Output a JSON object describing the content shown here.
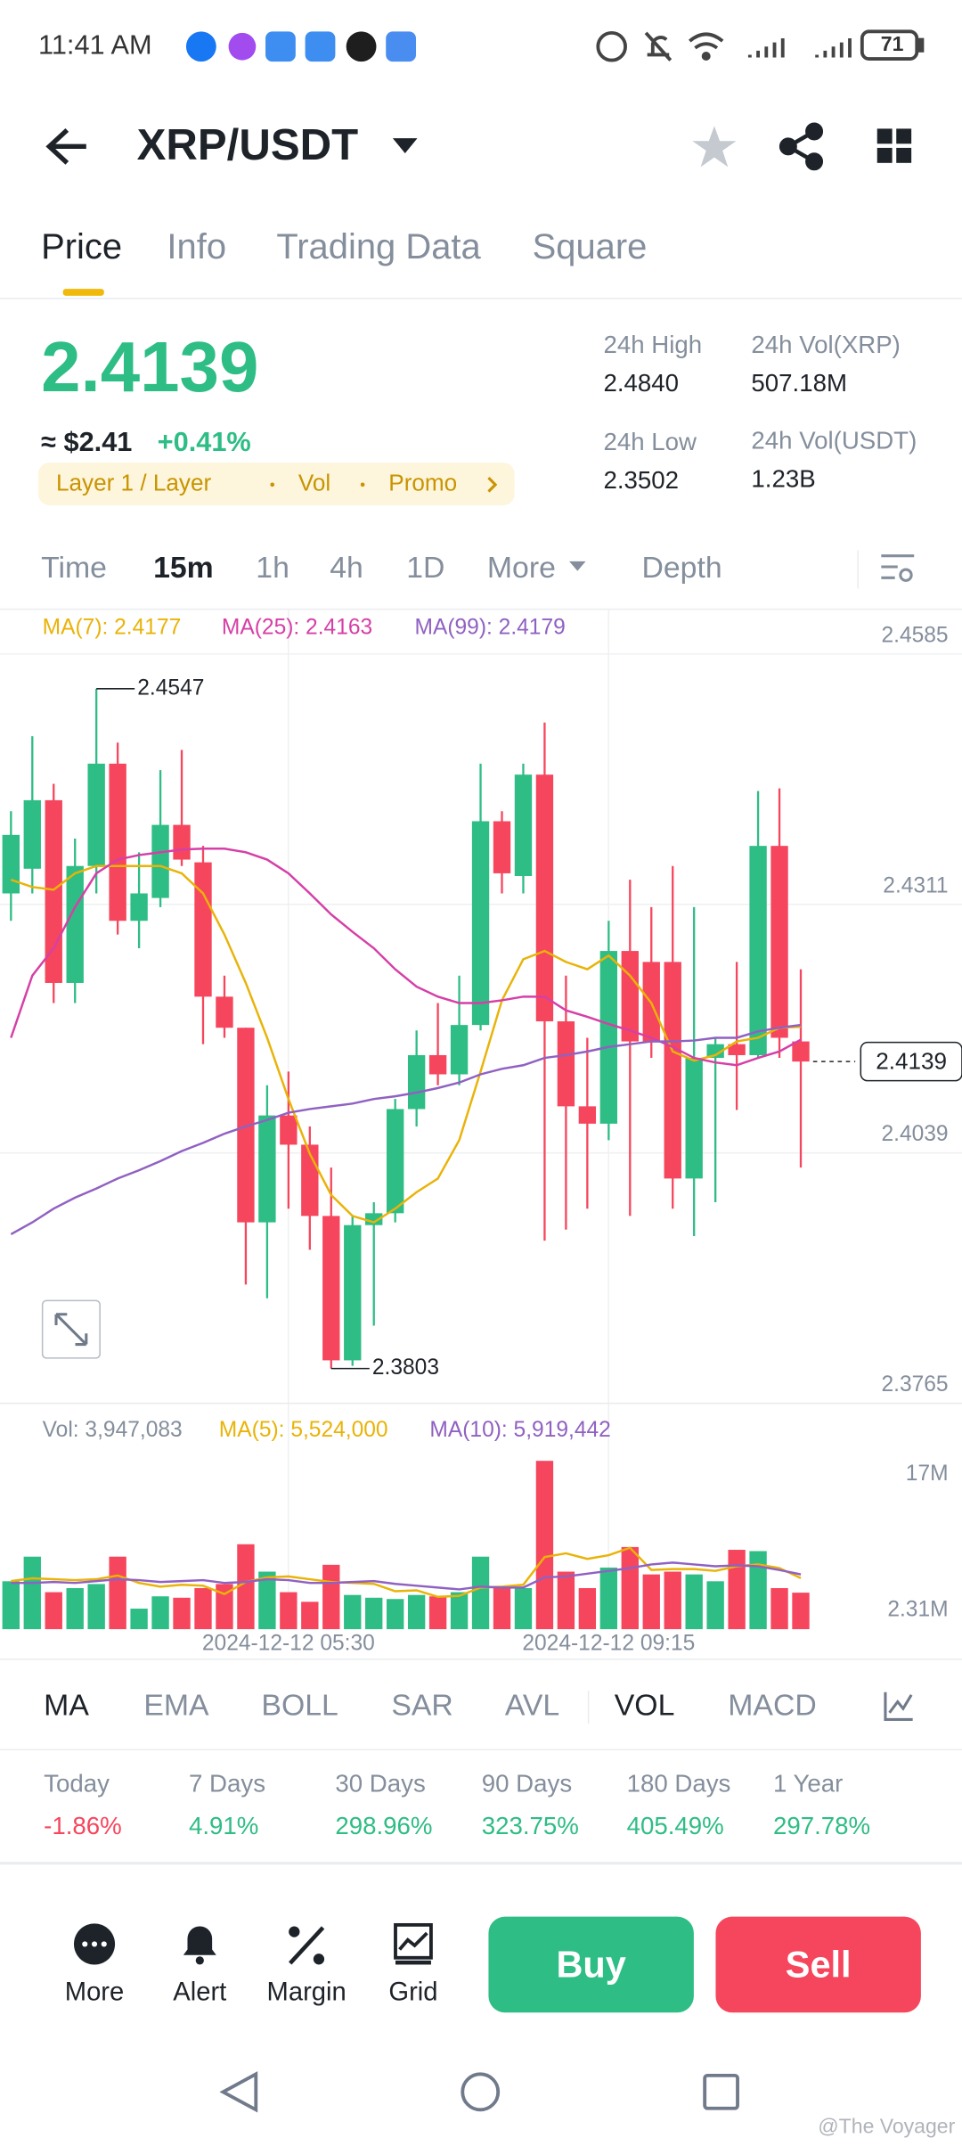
{
  "status_bar": {
    "time": "11:41 AM",
    "battery": "71"
  },
  "header": {
    "pair": "XRP/USDT"
  },
  "tabs": [
    "Price",
    "Info",
    "Trading Data",
    "Square"
  ],
  "ticker": {
    "price": "2.4139",
    "fiat": "≈ $2.41",
    "change": "+0.41%",
    "tags": [
      "Layer 1 / Layer",
      "Vol",
      "Promo"
    ],
    "stats": [
      {
        "label": "24h High",
        "value": "2.4840"
      },
      {
        "label": "24h Vol(XRP)",
        "value": "507.18M"
      },
      {
        "label": "24h Low",
        "value": "2.3502"
      },
      {
        "label": "24h Vol(USDT)",
        "value": "1.23B"
      }
    ]
  },
  "intervals": [
    "Time",
    "15m",
    "1h",
    "4h",
    "1D",
    "More",
    "Depth"
  ],
  "chart_data": [
    {
      "type": "candlestick",
      "open": [
        2.4323,
        2.435,
        2.4425,
        2.4225,
        2.4353,
        2.4465,
        2.4293,
        2.4318,
        2.4398,
        2.4357,
        2.421,
        2.4176,
        2.3963,
        2.408,
        2.4048,
        2.397,
        2.3812,
        2.396,
        2.3973,
        2.4087,
        2.4146,
        2.4125,
        2.4179,
        2.4402,
        2.4342,
        2.4453,
        2.4183,
        2.409,
        2.4071,
        2.426,
        2.4248,
        2.4248,
        2.4011,
        2.4143,
        2.4158,
        2.4146,
        2.4375,
        2.4161
      ],
      "high": [
        2.4413,
        2.4495,
        2.4443,
        2.4383,
        2.4547,
        2.4488,
        2.4368,
        2.4458,
        2.448,
        2.4375,
        2.4233,
        2.4176,
        2.4113,
        2.4128,
        2.4068,
        2.4023,
        2.397,
        2.3985,
        2.4098,
        2.4173,
        2.4203,
        2.4233,
        2.4465,
        2.4413,
        2.4465,
        2.451,
        2.4233,
        2.4165,
        2.4293,
        2.4338,
        2.4308,
        2.4353,
        2.4308,
        2.4165,
        2.4248,
        2.4435,
        2.4438,
        2.424
      ],
      "low": [
        2.4293,
        2.4323,
        2.4203,
        2.4203,
        2.4323,
        2.4278,
        2.4263,
        2.4308,
        2.4353,
        2.4158,
        2.4165,
        2.3895,
        2.388,
        2.3978,
        2.3933,
        2.3803,
        2.3806,
        2.385,
        2.3963,
        2.4068,
        2.4113,
        2.4113,
        2.4173,
        2.4323,
        2.4323,
        2.3943,
        2.3955,
        2.3978,
        2.4053,
        2.397,
        2.4143,
        2.3978,
        2.3948,
        2.3985,
        2.4086,
        2.4143,
        2.4143,
        2.4023
      ],
      "close": [
        2.4387,
        2.4425,
        2.4225,
        2.4353,
        2.4465,
        2.4293,
        2.4323,
        2.4398,
        2.436,
        2.421,
        2.4176,
        2.3963,
        2.408,
        2.4048,
        2.397,
        2.3812,
        2.396,
        2.3973,
        2.4087,
        2.4146,
        2.4125,
        2.4179,
        2.4402,
        2.4345,
        2.4453,
        2.4183,
        2.409,
        2.4071,
        2.426,
        2.4161,
        2.4161,
        2.4011,
        2.4143,
        2.4158,
        2.4146,
        2.4375,
        2.4165,
        2.4139
      ],
      "up_color": "#2ebd85",
      "down_color": "#f6465d",
      "series": [
        {
          "name": "MA(7): 2.4177",
          "color": "#e9b308",
          "values": [
            2.4338,
            2.433,
            2.4327,
            2.4345,
            2.4353,
            2.4353,
            2.4353,
            2.4353,
            2.4345,
            2.4323,
            2.4278,
            2.4225,
            2.4165,
            2.4098,
            2.4038,
            2.3993,
            2.397,
            2.3963,
            2.3978,
            2.3996,
            2.4011,
            2.4053,
            2.4128,
            2.4206,
            2.4251,
            2.426,
            2.4248,
            2.424,
            2.4255,
            2.4233,
            2.4203,
            2.415,
            2.414,
            2.4146,
            2.4161,
            2.4165,
            2.4176,
            2.4177
          ]
        },
        {
          "name": "MA(25): 2.4163",
          "color": "#d63fa6",
          "values": [
            2.4165,
            2.4233,
            2.4263,
            2.4308,
            2.4345,
            2.436,
            2.4365,
            2.4368,
            2.4371,
            2.4372,
            2.4372,
            2.4368,
            2.436,
            2.4345,
            2.4323,
            2.43,
            2.4281,
            2.4263,
            2.424,
            2.4221,
            2.421,
            2.4203,
            2.4203,
            2.4206,
            2.421,
            2.421,
            2.4195,
            2.4188,
            2.418,
            2.4173,
            2.4165,
            2.4155,
            2.4143,
            2.4138,
            2.4135,
            2.4143,
            2.415,
            2.4163
          ]
        },
        {
          "name": "MA(99): 2.4179",
          "color": "#9061c2",
          "values": [
            2.395,
            2.3963,
            2.3978,
            2.399,
            2.4,
            2.4011,
            2.402,
            2.403,
            2.4041,
            2.405,
            2.406,
            2.4068,
            2.4075,
            2.4083,
            2.4087,
            2.409,
            2.4093,
            2.4098,
            2.4101,
            2.4105,
            2.411,
            2.4116,
            2.4125,
            2.4131,
            2.4135,
            2.4143,
            2.4146,
            2.415,
            2.4155,
            2.4158,
            2.4161,
            2.4161,
            2.4162,
            2.4165,
            2.4165,
            2.4172,
            2.4176,
            2.4179
          ]
        }
      ],
      "ylim": [
        2.3765,
        2.4634
      ],
      "yticks": [
        2.4585,
        2.4311,
        2.4039,
        2.3765
      ],
      "grid": true,
      "high_label": 2.4547,
      "low_label": 2.3803,
      "last_price": 2.4139
    },
    {
      "type": "bar",
      "label": "Vol: 3,947,083",
      "categories": [
        null,
        null,
        null,
        null,
        null,
        null,
        null,
        null,
        null,
        null,
        null,
        null,
        null,
        "2024-12-12 05:30",
        null,
        null,
        null,
        null,
        null,
        null,
        null,
        null,
        null,
        null,
        null,
        null,
        null,
        null,
        "2024-12-12 09:15",
        null,
        null,
        null,
        null,
        null,
        null,
        null,
        null,
        null
      ],
      "values": [
        5180000,
        7840000,
        4000000,
        4440000,
        4880000,
        7840000,
        2220000,
        3550000,
        3400000,
        4440000,
        4880000,
        9180000,
        6220000,
        4000000,
        2960000,
        6960000,
        3700000,
        3400000,
        3260000,
        3700000,
        3550000,
        4000000,
        7840000,
        4440000,
        4440000,
        18200000,
        6220000,
        4440000,
        6660000,
        8880000,
        5920000,
        6220000,
        5920000,
        5180000,
        8580000,
        8440000,
        4440000,
        3947083
      ],
      "series": [
        {
          "name": "MA(5): 5,524,000",
          "color": "#e9b308",
          "values": [
            5200000,
            5500000,
            5400000,
            5300000,
            5400000,
            5800000,
            5000000,
            4600000,
            4800000,
            4700000,
            3800000,
            5100000,
            5600000,
            5700000,
            5400000,
            5100000,
            5000000,
            4900000,
            4100000,
            4200000,
            3500000,
            3600000,
            4500000,
            4600000,
            4800000,
            7800000,
            8200000,
            7600000,
            8000000,
            8800000,
            6400000,
            6500000,
            6500000,
            6300000,
            6800000,
            7000000,
            6600000,
            5524000
          ]
        },
        {
          "name": "MA(10): 5,919,442",
          "color": "#9061c2",
          "values": [
            5000000,
            5000000,
            5100000,
            5000000,
            5200000,
            5400000,
            5300000,
            5100000,
            5200000,
            5300000,
            5000000,
            5100000,
            5400000,
            5300000,
            5000000,
            5000000,
            5100000,
            5200000,
            4900000,
            4700000,
            4500000,
            4300000,
            4600000,
            4500000,
            4500000,
            5600000,
            5700000,
            6000000,
            6300000,
            6600000,
            7000000,
            7200000,
            7000000,
            6800000,
            6900000,
            6800000,
            6400000,
            5919442
          ]
        }
      ],
      "ylim": [
        0,
        18500000
      ],
      "yticks": [
        {
          "value": 17000000,
          "label": "17M"
        },
        {
          "value": 2310000,
          "label": "2.31M"
        }
      ]
    }
  ],
  "indicators": [
    "MA",
    "EMA",
    "BOLL",
    "SAR",
    "AVL",
    "VOL",
    "MACD"
  ],
  "performance": [
    {
      "label": "Today",
      "value": "-1.86%"
    },
    {
      "label": "7 Days",
      "value": "4.91%"
    },
    {
      "label": "30 Days",
      "value": "298.96%"
    },
    {
      "label": "90 Days",
      "value": "323.75%"
    },
    {
      "label": "180 Days",
      "value": "405.49%"
    },
    {
      "label": "1 Year",
      "value": "297.78%"
    }
  ],
  "actions": [
    "More",
    "Alert",
    "Margin",
    "Grid"
  ],
  "buy": "Buy",
  "sell": "Sell",
  "watermark": "@The Voyager"
}
